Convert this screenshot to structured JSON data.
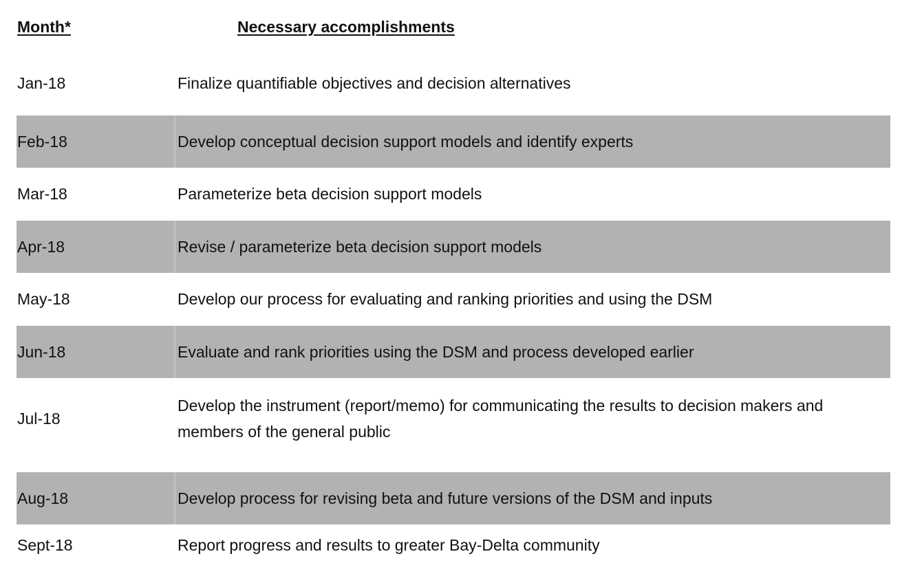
{
  "header": {
    "month": "Month*",
    "accomplishments": "Necessary accomplishments"
  },
  "rows": [
    {
      "month": "Jan-18",
      "task": "Finalize quantifiable objectives and decision alternatives"
    },
    {
      "month": "Feb-18",
      "task": "Develop conceptual decision support models and identify experts"
    },
    {
      "month": "Mar-18",
      "task": "Parameterize beta decision support models"
    },
    {
      "month": "Apr-18",
      "task": "Revise / parameterize beta decision support models"
    },
    {
      "month": "May-18",
      "task": "Develop our process for evaluating and ranking priorities and using the DSM"
    },
    {
      "month": "Jun-18",
      "task": "Evaluate and rank priorities using the DSM and process developed earlier"
    },
    {
      "month": "Jul-18",
      "task": "Develop the instrument (report/memo) for communicating the results to decision makers and members of the general public"
    },
    {
      "month": "Aug-18",
      "task": "Develop process for revising beta and future versions of the DSM and inputs"
    },
    {
      "month": "Sept-18",
      "task": "Report progress and results to greater Bay-Delta community"
    }
  ]
}
